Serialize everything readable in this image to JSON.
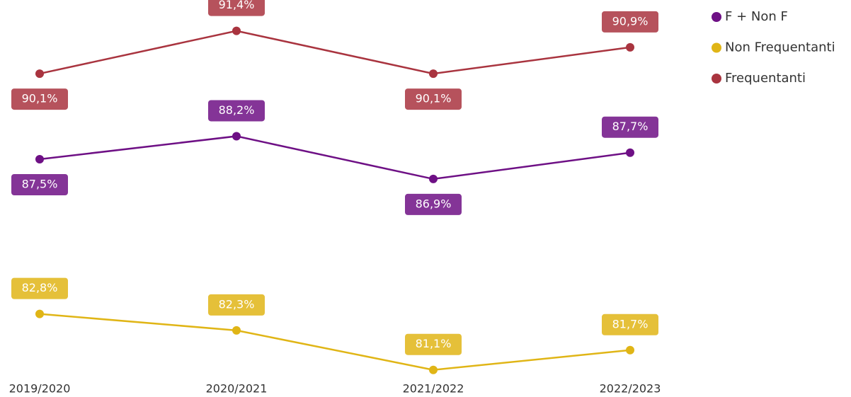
{
  "chart_data": {
    "type": "line",
    "categories": [
      "2019/2020",
      "2020/2021",
      "2021/2022",
      "2022/2023"
    ],
    "series": [
      {
        "name": "F + Non F",
        "color": "#6e1085",
        "values": [
          87.5,
          88.2,
          86.9,
          87.7
        ],
        "value_labels": [
          "87,5%",
          "88,2%",
          "86,9%",
          "87,7%"
        ]
      },
      {
        "name": "Non Frequentanti",
        "color": "#e0b516",
        "values": [
          82.8,
          82.3,
          81.1,
          81.7
        ],
        "value_labels": [
          "82,8%",
          "82,3%",
          "81,1%",
          "81,7%"
        ]
      },
      {
        "name": "Frequentanti",
        "color": "#a9343f",
        "values": [
          90.1,
          91.4,
          90.1,
          90.9
        ],
        "value_labels": [
          "90,1%",
          "91,4%",
          "90,1%",
          "90,9%"
        ]
      }
    ],
    "ylim": [
      80.9,
      91.8
    ],
    "legend": "top-right"
  }
}
